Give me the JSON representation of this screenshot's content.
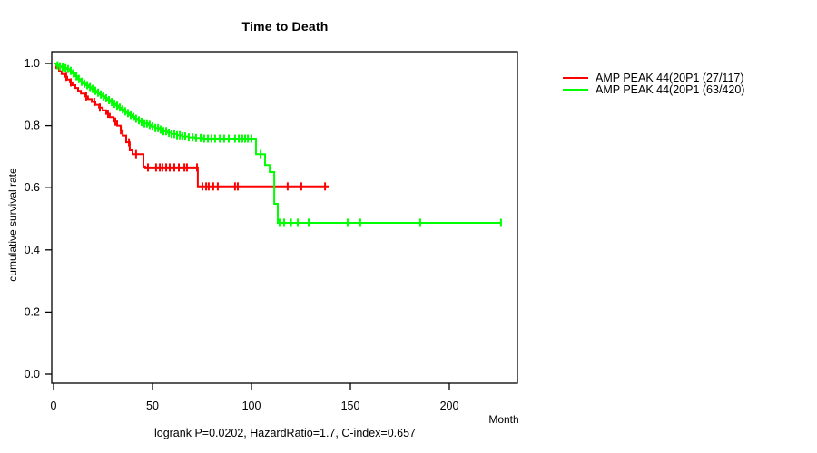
{
  "title": "Time to Death",
  "ylabel": "cumulative survival rate",
  "xlabel": "Month",
  "footer": "logrank P=0.0202, HazardRatio=1.7, C-index=0.657",
  "legend": [
    {
      "label": "AMP PEAK 44(20P1 (27/117)",
      "color": "#ff0000"
    },
    {
      "label": "AMP PEAK 44(20P1 (63/420)",
      "color": "#00ff00"
    }
  ],
  "colors": {
    "curve_red": "#ff0000",
    "curve_green": "#00ff00",
    "axis": "#000000"
  },
  "chart_data": {
    "type": "line",
    "subtype": "kaplan-meier-step",
    "title": "Time to Death",
    "xlabel": "Month",
    "ylabel": "cumulative survival rate",
    "xlim": [
      0,
      234
    ],
    "ylim": [
      0,
      1.04
    ],
    "xticks": [
      0,
      50,
      100,
      150,
      200
    ],
    "yticks": [
      0.0,
      0.2,
      0.4,
      0.6,
      0.8,
      1.0
    ],
    "grid": false,
    "legend_position": "right-outside",
    "series": [
      {
        "name": "AMP PEAK 44(20P1 (27/117)",
        "color": "#ff0000",
        "start": [
          0,
          1.0
        ],
        "steps": [
          [
            1.4,
            0.985
          ],
          [
            2.8,
            0.975
          ],
          [
            4.1,
            0.966
          ],
          [
            5.5,
            0.957
          ],
          [
            6.9,
            0.948
          ],
          [
            8.3,
            0.939
          ],
          [
            9.6,
            0.93
          ],
          [
            11.0,
            0.921
          ],
          [
            12.4,
            0.912
          ],
          [
            13.8,
            0.903
          ],
          [
            15.6,
            0.894
          ],
          [
            17.4,
            0.885
          ],
          [
            19.3,
            0.876
          ],
          [
            21.1,
            0.867
          ],
          [
            23.0,
            0.858
          ],
          [
            24.8,
            0.849
          ],
          [
            26.6,
            0.838
          ],
          [
            28.4,
            0.827
          ],
          [
            30.3,
            0.813
          ],
          [
            32.1,
            0.8
          ],
          [
            33.9,
            0.785
          ],
          [
            34.9,
            0.768
          ],
          [
            36.7,
            0.746
          ],
          [
            38.5,
            0.72
          ],
          [
            39.9,
            0.708
          ],
          [
            45.4,
            0.668
          ],
          [
            46.3,
            0.665
          ],
          [
            72.9,
            0.604
          ]
        ],
        "end_month": 139,
        "censor_months": [
          6.4,
          8.7,
          16.5,
          20.6,
          23.4,
          27.5,
          31.2,
          34.0,
          38.1,
          41.7,
          47.7,
          51.8,
          53.7,
          55.0,
          56.9,
          58.7,
          61.0,
          63.3,
          66.1,
          67.4,
          72.5,
          75.2,
          77.1,
          78.4,
          80.7,
          83.0,
          91.7,
          93.1,
          118.3,
          125.2,
          137.2
        ]
      },
      {
        "name": "AMP PEAK 44(20P1 (63/420)",
        "color": "#00ff00",
        "start": [
          0,
          1.0
        ],
        "steps": [
          [
            1.4,
            0.994
          ],
          [
            2.8,
            0.991
          ],
          [
            4.1,
            0.988
          ],
          [
            5.5,
            0.985
          ],
          [
            6.9,
            0.982
          ],
          [
            8.3,
            0.976
          ],
          [
            9.6,
            0.968
          ],
          [
            11.0,
            0.959
          ],
          [
            12.4,
            0.95
          ],
          [
            13.8,
            0.941
          ],
          [
            15.1,
            0.935
          ],
          [
            16.5,
            0.93
          ],
          [
            17.9,
            0.924
          ],
          [
            19.3,
            0.918
          ],
          [
            20.6,
            0.912
          ],
          [
            22.0,
            0.906
          ],
          [
            23.4,
            0.9
          ],
          [
            24.8,
            0.894
          ],
          [
            26.1,
            0.888
          ],
          [
            27.5,
            0.882
          ],
          [
            28.9,
            0.876
          ],
          [
            30.3,
            0.87
          ],
          [
            31.7,
            0.864
          ],
          [
            33.0,
            0.858
          ],
          [
            34.4,
            0.852
          ],
          [
            35.8,
            0.846
          ],
          [
            37.2,
            0.84
          ],
          [
            38.5,
            0.834
          ],
          [
            39.9,
            0.828
          ],
          [
            41.3,
            0.822
          ],
          [
            42.7,
            0.817
          ],
          [
            44.0,
            0.812
          ],
          [
            45.9,
            0.807
          ],
          [
            47.7,
            0.802
          ],
          [
            49.5,
            0.797
          ],
          [
            51.4,
            0.792
          ],
          [
            53.2,
            0.787
          ],
          [
            55.0,
            0.782
          ],
          [
            57.3,
            0.777
          ],
          [
            59.6,
            0.773
          ],
          [
            62.4,
            0.769
          ],
          [
            65.1,
            0.765
          ],
          [
            68.3,
            0.762
          ],
          [
            71.6,
            0.76
          ],
          [
            75.2,
            0.758
          ],
          [
            102.3,
            0.708
          ],
          [
            106.9,
            0.673
          ],
          [
            109.2,
            0.65
          ],
          [
            111.5,
            0.548
          ],
          [
            113.3,
            0.487
          ]
        ],
        "end_month": 226.1,
        "censor_months": [
          2.0,
          3.2,
          4.6,
          6.0,
          7.3,
          8.7,
          10.1,
          11.5,
          12.8,
          14.2,
          15.6,
          17.0,
          18.4,
          19.7,
          21.1,
          22.5,
          23.9,
          25.2,
          26.6,
          28.0,
          29.4,
          30.7,
          32.1,
          33.5,
          34.9,
          36.2,
          37.6,
          39.0,
          40.4,
          41.7,
          43.1,
          44.5,
          45.9,
          47.2,
          48.6,
          50.0,
          51.4,
          52.8,
          54.1,
          55.5,
          56.9,
          58.3,
          59.6,
          61.0,
          62.4,
          63.8,
          65.1,
          66.5,
          68.3,
          70.2,
          72.0,
          74.3,
          76.1,
          78.0,
          79.8,
          81.6,
          84.0,
          86.2,
          88.5,
          91.7,
          93.6,
          95.4,
          96.8,
          98.2,
          100.0,
          104.6,
          114.2,
          116.5,
          120.0,
          123.4,
          128.9,
          148.6,
          155.0,
          185.3,
          226.1
        ]
      }
    ]
  }
}
